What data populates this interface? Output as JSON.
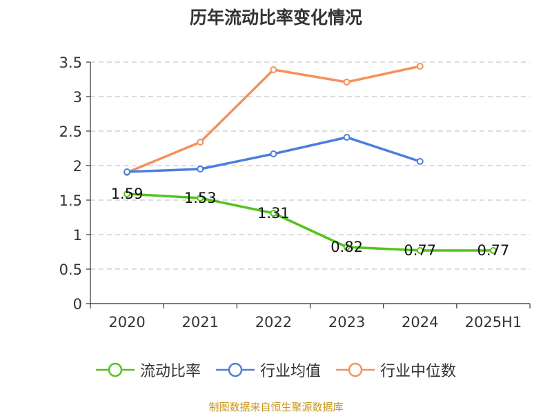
{
  "chart_data": {
    "type": "line",
    "title": "历年流动比率变化情况",
    "categories": [
      "2020",
      "2021",
      "2022",
      "2023",
      "2024",
      "2025H1"
    ],
    "yticks": [
      "0",
      "0.5",
      "1",
      "1.5",
      "2",
      "2.5",
      "3",
      "3.5"
    ],
    "ylim": [
      0,
      3.5
    ],
    "grid": true,
    "legend_position": "bottom",
    "series": [
      {
        "name": "流动比率",
        "color": "#52c41a",
        "values": [
          1.59,
          1.53,
          1.31,
          0.82,
          0.77,
          0.77
        ],
        "labels": [
          "1.59",
          "1.53",
          "1.31",
          "0.82",
          "0.77",
          "0.77"
        ]
      },
      {
        "name": "行业均值",
        "color": "#4a7fdc",
        "values": [
          1.91,
          1.95,
          2.17,
          2.41,
          2.06,
          null
        ]
      },
      {
        "name": "行业中位数",
        "color": "#f7905a",
        "values": [
          1.9,
          2.34,
          3.39,
          3.21,
          3.44,
          null
        ]
      }
    ],
    "source": "制图数据来自恒生聚源数据库"
  }
}
